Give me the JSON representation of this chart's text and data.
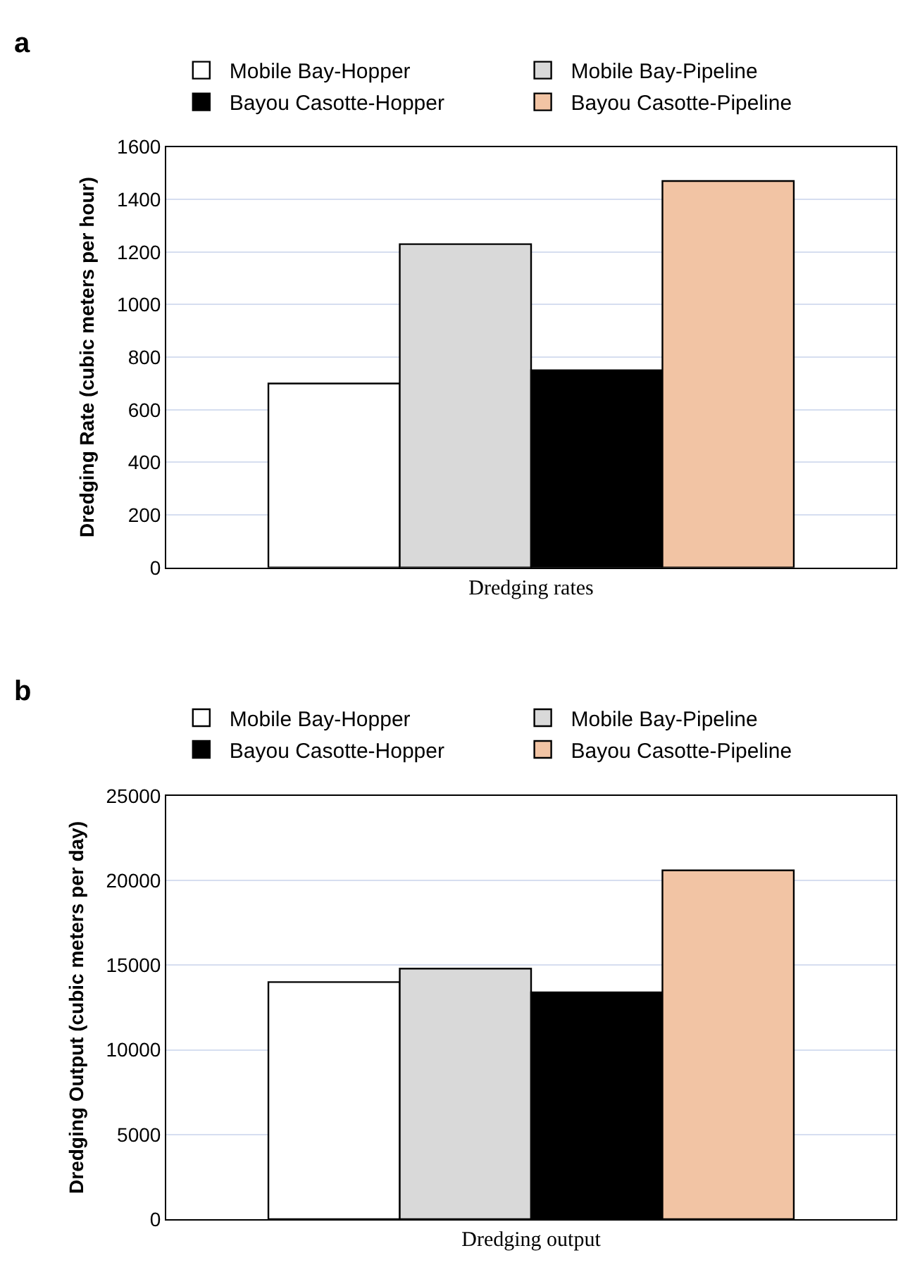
{
  "chart_data": [
    {
      "type": "bar",
      "title": "a",
      "ylabel": "Dredging Rate (cubic meters per hour)",
      "categories": [
        "Dredging rates"
      ],
      "ylim": [
        0,
        1600
      ],
      "yticks": [
        0,
        200,
        400,
        600,
        800,
        1000,
        1200,
        1400,
        1600
      ],
      "grid": "y",
      "legend": "top",
      "series": [
        {
          "name": "Mobile Bay-Hopper",
          "color": "#ffffff",
          "values": [
            700
          ]
        },
        {
          "name": "Mobile Bay-Pipeline",
          "color": "#d9d9d9",
          "values": [
            1230
          ]
        },
        {
          "name": "Bayou Casotte-Hopper",
          "color": "#000000",
          "values": [
            750
          ]
        },
        {
          "name": "Bayou Casotte-Pipeline",
          "color": "#f2c4a4",
          "values": [
            1470
          ]
        }
      ]
    },
    {
      "type": "bar",
      "title": "b",
      "ylabel": "Dredging Output (cubic meters per day)",
      "categories": [
        "Dredging output"
      ],
      "ylim": [
        0,
        25000
      ],
      "yticks": [
        0,
        5000,
        10000,
        15000,
        20000,
        25000
      ],
      "grid": "y",
      "legend": "top",
      "series": [
        {
          "name": "Mobile Bay-Hopper",
          "color": "#ffffff",
          "values": [
            14000
          ]
        },
        {
          "name": "Mobile Bay-Pipeline",
          "color": "#d9d9d9",
          "values": [
            14800
          ]
        },
        {
          "name": "Bayou Casotte-Hopper",
          "color": "#000000",
          "values": [
            13400
          ]
        },
        {
          "name": "Bayou Casotte-Pipeline",
          "color": "#f2c4a4",
          "values": [
            20600
          ]
        }
      ]
    }
  ]
}
